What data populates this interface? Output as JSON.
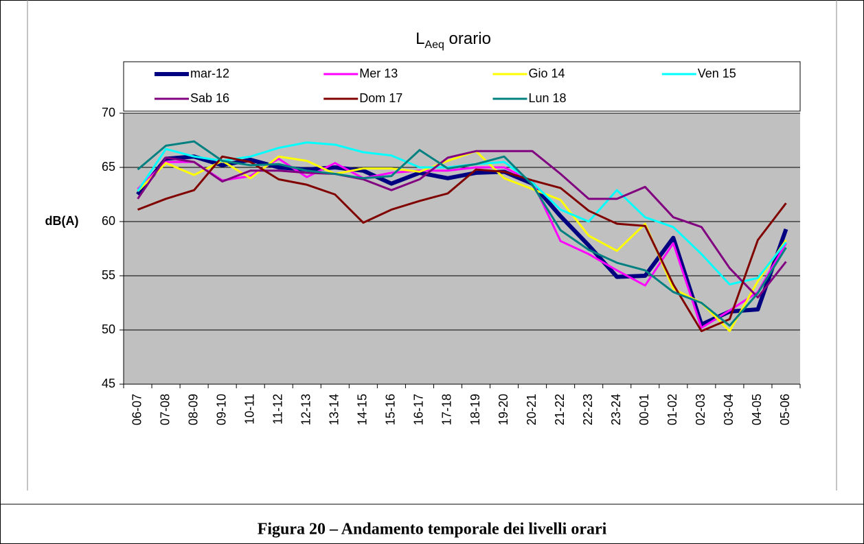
{
  "chart_data": {
    "type": "line",
    "title": [
      "L",
      "Aeq",
      " orario"
    ],
    "y_label": "dB(A)",
    "categories": [
      "06-07",
      "07-08",
      "08-09",
      "09-10",
      "10-11",
      "11-12",
      "12-13",
      "13-14",
      "14-15",
      "15-16",
      "16-17",
      "17-18",
      "18-19",
      "19-20",
      "20-21",
      "21-22",
      "22-23",
      "23-24",
      "00-01",
      "01-02",
      "02-03",
      "03-04",
      "04-05",
      "05-06"
    ],
    "series": [
      {
        "name": "mar-12",
        "color": "#000080",
        "line_width": 6,
        "values": [
          62.5,
          65.8,
          66,
          65.2,
          65.7,
          65,
          64.8,
          65,
          64.7,
          63.5,
          64.5,
          64,
          64.5,
          64.6,
          63.5,
          60.5,
          57.8,
          54.9,
          55,
          58.5,
          50.5,
          51.7,
          51.9,
          59.3
        ]
      },
      {
        "name": "Mer 13",
        "color": "#ff00ff",
        "line_width": 3,
        "values": [
          63,
          65.5,
          65.5,
          63.8,
          64.2,
          65.8,
          64.1,
          65.4,
          64,
          64.5,
          64.7,
          64.7,
          65,
          65,
          63.7,
          58.2,
          57,
          55.5,
          54.1,
          58,
          50.2,
          51.8,
          53.5,
          58
        ]
      },
      {
        "name": "Gio 14",
        "color": "#ffff00",
        "line_width": 3,
        "values": [
          62.8,
          65.4,
          64.3,
          65.6,
          64,
          66,
          65.6,
          64.4,
          64.9,
          64.9,
          64.6,
          65.6,
          66.5,
          64,
          63,
          62,
          58.7,
          57.3,
          59.8,
          53.8,
          52.5,
          49.9,
          54.5,
          58.3
        ]
      },
      {
        "name": "Ven 15",
        "color": "#00ffff",
        "line_width": 3,
        "values": [
          62.8,
          66.7,
          66,
          65.6,
          66,
          66.8,
          67.3,
          67.1,
          66.4,
          66.1,
          65,
          65,
          65.3,
          65.5,
          63.6,
          61.1,
          60,
          62.9,
          60.4,
          59.5,
          57,
          54.2,
          54.8,
          58.1
        ]
      },
      {
        "name": "Sab 16",
        "color": "#800080",
        "line_width": 3,
        "values": [
          62.1,
          65.9,
          65.5,
          63.7,
          64.7,
          64.7,
          64.5,
          64.4,
          63.9,
          62.9,
          63.9,
          65.9,
          66.5,
          66.5,
          66.5,
          64.4,
          62.1,
          62.1,
          63.2,
          60.4,
          59.5,
          55.7,
          53,
          56.3
        ]
      },
      {
        "name": "Dom 17",
        "color": "#800000",
        "line_width": 3,
        "values": [
          61.1,
          62.1,
          62.9,
          66,
          65.5,
          63.9,
          63.4,
          62.5,
          59.9,
          61.1,
          61.9,
          62.6,
          64.8,
          64.6,
          63.8,
          63.1,
          61,
          59.8,
          59.6,
          54.2,
          49.9,
          51,
          58.3,
          61.7
        ]
      },
      {
        "name": "Lun 18",
        "color": "#008080",
        "line_width": 3,
        "values": [
          64.8,
          67,
          67.4,
          65.6,
          65.2,
          65.3,
          64.7,
          64.4,
          64,
          64.2,
          66.6,
          64.9,
          65.3,
          66,
          63.4,
          59.2,
          57.4,
          56.2,
          55.5,
          53.5,
          52.5,
          50.4,
          53.4,
          57.6
        ]
      }
    ],
    "ylim": [
      45,
      70
    ],
    "yticks": [
      45,
      50,
      55,
      60,
      65,
      70
    ],
    "grid": true,
    "plot_background": "#c0c0c0",
    "legend": "top"
  },
  "caption": "Figura 20 – Andamento temporale dei livelli orari"
}
